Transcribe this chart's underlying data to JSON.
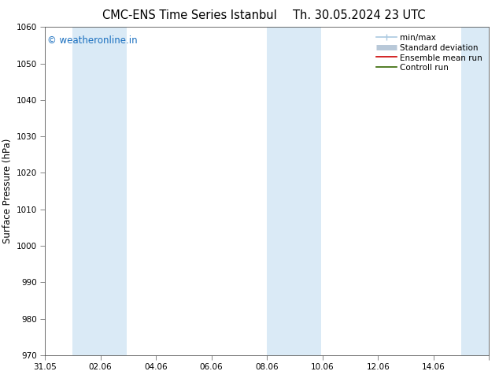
{
  "title_left": "CMC-ENS Time Series Istanbul",
  "title_right": "Th. 30.05.2024 23 UTC",
  "ylabel": "Surface Pressure (hPa)",
  "ylim": [
    970,
    1060
  ],
  "yticks": [
    970,
    980,
    990,
    1000,
    1010,
    1020,
    1030,
    1040,
    1050,
    1060
  ],
  "xlim_start": 0.0,
  "xlim_end": 16.0,
  "xtick_positions": [
    0,
    2,
    4,
    6,
    8,
    10,
    12,
    14,
    16
  ],
  "xtick_labels": [
    "31.05",
    "02.06",
    "04.06",
    "06.06",
    "08.06",
    "10.06",
    "12.06",
    "14.06",
    ""
  ],
  "shaded_bands": [
    {
      "x_start": 1.0,
      "x_end": 2.958
    },
    {
      "x_start": 8.0,
      "x_end": 9.958
    },
    {
      "x_start": 15.0,
      "x_end": 16.0
    }
  ],
  "shade_color": "#daeaf6",
  "watermark_text": "© weatheronline.in",
  "watermark_color": "#1a6fbf",
  "background_color": "#ffffff",
  "spine_color": "#555555",
  "title_fontsize": 10.5,
  "label_fontsize": 8.5,
  "tick_fontsize": 7.5,
  "watermark_fontsize": 8.5,
  "legend_fontsize": 7.5
}
